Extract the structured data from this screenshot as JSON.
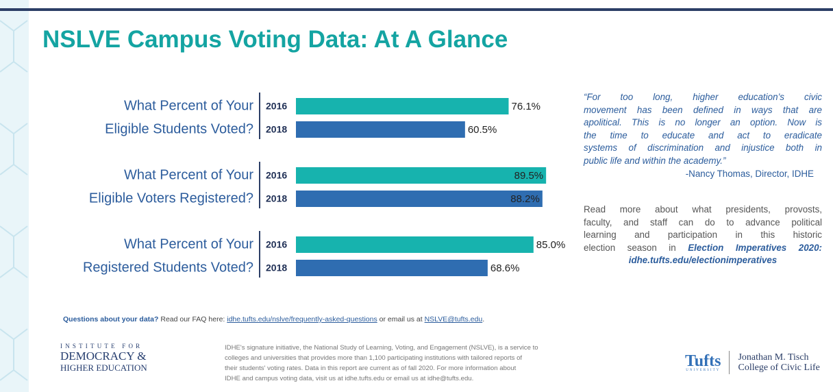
{
  "header": {
    "title": "NSLVE Campus Voting Data: At A Glance"
  },
  "chart_data": {
    "type": "hbar-grouped",
    "categories": [
      [
        "What Percent of Your",
        "Eligible Students Voted?"
      ],
      [
        "What Percent of Your",
        "Eligible Voters Registered?"
      ],
      [
        "What Percent of Your",
        "Registered Students Voted?"
      ]
    ],
    "series": [
      {
        "name": "2016",
        "color": "#17b3ae",
        "values": [
          76.1,
          89.5,
          85.0
        ],
        "value_labels": [
          "76.1%",
          "89.5%",
          "85.0%"
        ]
      },
      {
        "name": "2018",
        "color": "#2f6db1",
        "values": [
          60.5,
          88.2,
          68.6
        ],
        "value_labels": [
          "60.5%",
          "88.2%",
          "68.6%"
        ]
      }
    ],
    "xlim": [
      0,
      100
    ]
  },
  "quote": {
    "lines": [
      "“For too long, higher education’s civic",
      "movement has been defined in ways that are",
      "apolitical. This is no longer an option. Now is",
      "the time to educate and act to eradicate",
      "systems of discrimination and injustice both in",
      "public life and within the academy.”"
    ],
    "attribution": "-Nancy Thomas, Director, IDHE"
  },
  "read_more": {
    "lines": [
      "Read more about what presidents, provosts,",
      "faculty, and staff can do to advance political",
      "learning and participation in this historic",
      "election season in"
    ],
    "publication": "Election Imperatives 2020:",
    "url": "idhe.tufts.edu/electionimperatives"
  },
  "questions": {
    "lead": "Questions about your data?",
    "text1": "Read our FAQ here:",
    "faq_link": "idhe.tufts.edu/nslve/frequently-asked-questions",
    "text2": "or email us at",
    "email": "NSLVE@tufts.edu",
    "end": "."
  },
  "footer": {
    "idhe_logo": [
      "INSTITUTE FOR",
      "DEMOCRACY &",
      "HIGHER EDUCATION"
    ],
    "about": [
      "IDHE's signature initiative, the National Study of Learning, Voting, and Engagement (NSLVE), is a service to",
      "colleges and universities that provides more than 1,100 participating institutions with tailored reports of",
      "their students' voting rates. Data in this report are current as of fall 2020. For more information about",
      "IDHE and campus voting data, visit us at idhe.tufts.edu  or email us at idhe@tufts.edu."
    ],
    "tufts_logo": {
      "name": "Tufts",
      "sub": "UNIVERSITY",
      "college": [
        "Jonathan M. Tisch",
        "College of Civic Life"
      ]
    }
  }
}
